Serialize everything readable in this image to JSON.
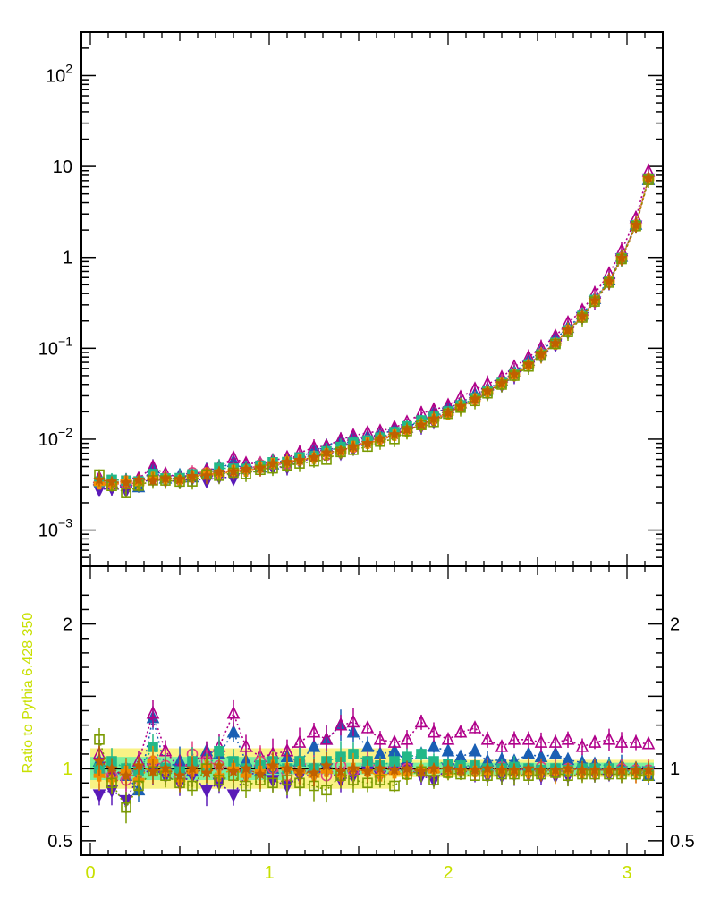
{
  "chart_data": [
    {
      "panel": "main",
      "type": "scatter",
      "yscale": "log",
      "ylim": [
        0.0004,
        300
      ],
      "xlim": [
        -0.05,
        3.2
      ],
      "ytick_labels": [
        {
          "value": 0.001,
          "base": "10",
          "exp": "−3"
        },
        {
          "value": 0.01,
          "base": "10",
          "exp": "−2"
        },
        {
          "value": 0.1,
          "base": "10",
          "exp": "−1"
        },
        {
          "value": 1,
          "base": "1",
          "exp": ""
        },
        {
          "value": 10,
          "base": "10",
          "exp": ""
        },
        {
          "value": 100,
          "base": "10",
          "exp": "2"
        }
      ],
      "x": [
        0.05,
        0.12,
        0.2,
        0.27,
        0.35,
        0.42,
        0.5,
        0.57,
        0.65,
        0.72,
        0.8,
        0.87,
        0.95,
        1.02,
        1.1,
        1.17,
        1.25,
        1.32,
        1.4,
        1.47,
        1.55,
        1.62,
        1.7,
        1.77,
        1.85,
        1.92,
        2.0,
        2.07,
        2.15,
        2.22,
        2.3,
        2.37,
        2.45,
        2.52,
        2.6,
        2.67,
        2.75,
        2.82,
        2.9,
        2.97,
        3.05,
        3.12
      ],
      "curve": [
        0.0034,
        0.0034,
        0.0035,
        0.0035,
        0.0036,
        0.0037,
        0.0038,
        0.0039,
        0.0041,
        0.0043,
        0.0045,
        0.0047,
        0.005,
        0.0053,
        0.0056,
        0.006,
        0.0065,
        0.007,
        0.0076,
        0.0083,
        0.0092,
        0.0102,
        0.0114,
        0.0128,
        0.0146,
        0.0168,
        0.0196,
        0.0231,
        0.0277,
        0.0336,
        0.0415,
        0.052,
        0.0663,
        0.0864,
        0.115,
        0.159,
        0.227,
        0.34,
        0.55,
        1.0,
        2.3,
        7.5
      ],
      "series": [
        {
          "color": "#1a5fb4",
          "marker": "triangle-up",
          "filled": true
        },
        {
          "color": "#b0008a",
          "marker": "triangle-up",
          "filled": false
        },
        {
          "color": "#5a1ab8",
          "marker": "triangle-down",
          "filled": true
        },
        {
          "color": "#e04080",
          "marker": "circle",
          "filled": false
        },
        {
          "color": "#22b888",
          "marker": "square",
          "filled": true
        },
        {
          "color": "#f08c00",
          "marker": "cross",
          "filled": true
        },
        {
          "color": "#7a9a00",
          "marker": "square",
          "filled": false
        },
        {
          "color": "#c06000",
          "marker": "star",
          "filled": true
        }
      ]
    },
    {
      "panel": "ratio",
      "type": "scatter",
      "ylabel": "Ratio to Pythia 6.428 350",
      "ylim": [
        0.4,
        2.4
      ],
      "ytick_labels_left": [
        {
          "value": 2,
          "label": "2"
        },
        {
          "value": 1,
          "label": "1"
        },
        {
          "value": 0.5,
          "label": "0.5"
        }
      ],
      "ytick_labels_right": [
        {
          "value": 2,
          "label": "2"
        },
        {
          "value": 1,
          "label": "1"
        },
        {
          "value": 0.5,
          "label": "0.5"
        }
      ],
      "xticks": [
        {
          "value": 0,
          "label": "0"
        },
        {
          "value": 1,
          "label": "1"
        },
        {
          "value": 2,
          "label": "2"
        },
        {
          "value": 3,
          "label": "3"
        }
      ],
      "band_outer": {
        "color": "#f8f070",
        "x_range": [
          0.0,
          1.7
        ],
        "y_range": [
          0.86,
          1.14
        ]
      },
      "band_inner": {
        "color": "#70f0a0",
        "x_range": [
          0.0,
          3.15
        ],
        "y_range": [
          0.96,
          1.04
        ]
      },
      "ratios": [
        [
          1.05,
          0.98,
          0.95,
          0.85,
          1.35,
          1.0,
          1.05,
          0.98,
          1.12,
          1.1,
          1.25,
          1.05,
          0.98,
          1.0,
          1.08,
          1.05,
          1.15,
          1.2,
          1.3,
          1.25,
          1.15,
          1.1,
          1.12,
          1.05,
          1.1,
          1.15,
          1.12,
          1.08,
          1.12,
          1.05,
          1.06,
          1.05,
          1.1,
          1.08,
          1.1,
          1.06,
          1.04,
          1.03,
          1.02,
          1.02,
          1.0,
          0.95
        ],
        [
          1.1,
          0.95,
          1.0,
          1.05,
          1.38,
          1.12,
          1.0,
          1.05,
          1.1,
          1.15,
          1.38,
          1.15,
          1.08,
          1.1,
          1.12,
          1.18,
          1.25,
          1.2,
          1.3,
          1.32,
          1.28,
          1.2,
          1.18,
          1.2,
          1.32,
          1.25,
          1.2,
          1.25,
          1.28,
          1.2,
          1.15,
          1.2,
          1.2,
          1.18,
          1.18,
          1.2,
          1.15,
          1.18,
          1.2,
          1.18,
          1.18,
          1.17
        ],
        [
          0.82,
          0.85,
          0.78,
          0.95,
          1.0,
          0.95,
          0.9,
          0.95,
          0.85,
          0.9,
          0.82,
          0.95,
          0.98,
          0.92,
          0.88,
          0.95,
          0.95,
          1.0,
          0.92,
          0.95,
          0.98,
          0.95,
          0.98,
          1.0,
          0.95,
          0.92,
          1.0,
          0.98,
          0.98,
          0.95,
          0.95,
          0.96,
          0.96,
          0.95,
          0.95,
          0.95,
          0.97,
          0.96,
          0.96,
          0.97,
          0.97,
          0.98
        ],
        [
          0.98,
          0.95,
          0.92,
          0.98,
          1.05,
          1.02,
          0.95,
          1.1,
          1.05,
          1.02,
          1.0,
          0.98,
          1.05,
          1.0,
          0.95,
          1.05,
          1.0,
          0.95,
          1.02,
          0.98,
          1.05,
          1.0,
          1.02,
          1.0,
          0.98,
          1.0,
          1.0,
          0.99,
          1.0,
          1.0,
          1.01,
          1.0,
          1.0,
          1.01,
          1.0,
          1.0,
          1.0,
          1.0,
          1.0,
          1.0,
          0.99,
          0.99
        ],
        [
          1.0,
          1.05,
          1.0,
          0.98,
          1.15,
          1.0,
          0.98,
          1.05,
          1.0,
          1.12,
          1.05,
          1.0,
          1.02,
          1.05,
          1.0,
          1.05,
          1.0,
          1.05,
          1.08,
          1.1,
          1.05,
          1.02,
          1.05,
          1.08,
          1.1,
          1.05,
          1.03,
          1.02,
          1.02,
          1.0,
          1.0,
          1.01,
          1.0,
          0.99,
          1.0,
          0.99,
          1.0,
          1.0,
          1.0,
          0.98,
          0.98,
          0.98
        ],
        [
          0.95,
          0.92,
          0.98,
          0.92,
          1.05,
          0.98,
          0.92,
          0.98,
          1.02,
          0.95,
          1.0,
          0.95,
          0.98,
          1.02,
          1.0,
          0.98,
          0.95,
          0.98,
          0.95,
          1.0,
          0.98,
          0.95,
          0.97,
          0.96,
          0.99,
          0.98,
          0.97,
          0.99,
          0.98,
          0.97,
          0.98,
          0.97,
          0.97,
          0.97,
          0.97,
          0.98,
          0.97,
          0.97,
          0.98,
          0.97,
          0.97,
          0.97
        ],
        [
          1.2,
          0.9,
          0.73,
          0.88,
          0.98,
          0.95,
          0.9,
          0.88,
          1.0,
          0.92,
          0.95,
          0.88,
          0.92,
          0.9,
          0.92,
          0.9,
          0.88,
          0.85,
          0.95,
          0.92,
          0.9,
          0.92,
          0.88,
          0.96,
          0.98,
          0.92,
          0.97,
          0.96,
          0.95,
          0.95,
          0.96,
          0.96,
          0.95,
          0.96,
          0.97,
          0.95,
          0.96,
          0.96,
          0.96,
          0.96,
          0.96,
          0.95
        ],
        [
          1.05,
          1.0,
          0.95,
          1.02,
          0.98,
          1.0,
          0.95,
          1.0,
          0.97,
          1.02,
          0.98,
          1.0,
          0.96,
          1.02,
          1.0,
          0.98,
          0.97,
          1.02,
          0.98,
          1.0,
          0.98,
          1.0,
          0.99,
          1.0,
          0.98,
          1.0,
          1.0,
          0.99,
          0.99,
          1.0,
          0.99,
          0.99,
          1.0,
          0.99,
          0.99,
          1.0,
          0.99,
          0.99,
          0.99,
          0.99,
          0.99,
          0.99
        ]
      ]
    }
  ]
}
